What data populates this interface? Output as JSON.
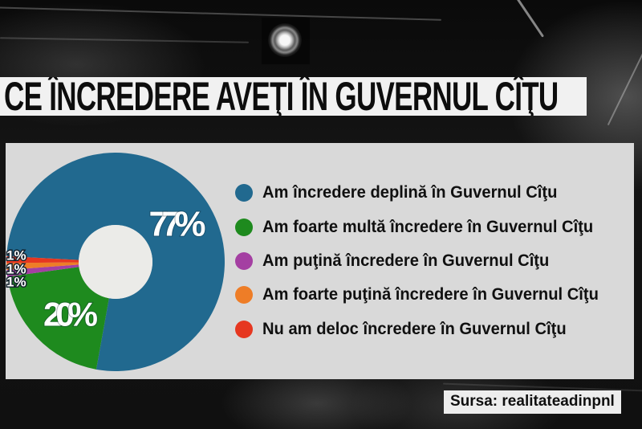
{
  "title_bar": {
    "text": "CE ÎNCREDERE AVEŢI ÎN GUVERNUL CÎŢU"
  },
  "source_tag": {
    "text": "Sursa: realitateadinpnl"
  },
  "panel": {
    "background": "#d9d9d9",
    "hole_color": "#ebebe8"
  },
  "chart_data": {
    "type": "pie",
    "subtype": "donut",
    "title": "CE ÎNCREDERE AVEŢI ÎN GUVERNUL CÎŢU",
    "unit": "%",
    "direction": "clockwise",
    "start_angle_deg": -87,
    "hole_ratio": 0.34,
    "legend_position": "right",
    "series": [
      {
        "label": "Am încredere deplină în Guvernul Cîţu",
        "value": 77,
        "color": "#21698f"
      },
      {
        "label": "Am foarte multă încredere în Guvernul Cîţu",
        "value": 20,
        "color": "#1e8a1e"
      },
      {
        "label": "Am puţină încredere în Guvernul Cîţu",
        "value": 1,
        "color": "#a43fa2"
      },
      {
        "label": "Am foarte puţină încredere în Guvernul Cîţu",
        "value": 1,
        "color": "#ee7d27"
      },
      {
        "label": "Nu am deloc încredere în Guvernul Cîţu",
        "value": 1,
        "color": "#e63720"
      }
    ],
    "slice_labels": [
      {
        "text": "77%",
        "x": 214,
        "y": 101,
        "size": 44,
        "anchor": "middle",
        "outlined": false
      },
      {
        "text": "20%",
        "x": 81,
        "y": 213,
        "size": 42,
        "anchor": "middle",
        "outlined": false
      },
      {
        "text": "1%",
        "x": 1,
        "y": 140,
        "size": 17,
        "anchor": "start",
        "outlined": true
      },
      {
        "text": "1%",
        "x": 1,
        "y": 157,
        "size": 17,
        "anchor": "start",
        "outlined": true
      },
      {
        "text": "1%",
        "x": 1,
        "y": 173,
        "size": 17,
        "anchor": "start",
        "outlined": true
      }
    ]
  }
}
